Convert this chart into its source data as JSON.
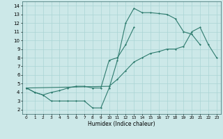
{
  "xlabel": "Humidex (Indice chaleur)",
  "xlim": [
    -0.5,
    23.5
  ],
  "ylim": [
    1.5,
    14.5
  ],
  "xticks": [
    0,
    1,
    2,
    3,
    4,
    5,
    6,
    7,
    8,
    9,
    10,
    11,
    12,
    13,
    14,
    15,
    16,
    17,
    18,
    19,
    20,
    21,
    22,
    23
  ],
  "yticks": [
    2,
    3,
    4,
    5,
    6,
    7,
    8,
    9,
    10,
    11,
    12,
    13,
    14
  ],
  "bg_color": "#cce8e8",
  "line_color": "#2e7b6e",
  "grid_color": "#aad4d4",
  "lines": [
    {
      "x": [
        0,
        1,
        2,
        3,
        4,
        5,
        6,
        7,
        8,
        9,
        10,
        11,
        12,
        13,
        14,
        15,
        16,
        17,
        18,
        19,
        20,
        21
      ],
      "y": [
        4.5,
        4.0,
        3.7,
        3.0,
        3.0,
        3.0,
        3.0,
        3.0,
        2.2,
        2.2,
        4.5,
        7.7,
        12.0,
        13.7,
        13.2,
        13.2,
        13.1,
        13.0,
        12.5,
        11.0,
        10.7,
        9.5
      ]
    },
    {
      "x": [
        0,
        1,
        2,
        3,
        4,
        5,
        6,
        7,
        8,
        9,
        10,
        11,
        12,
        13
      ],
      "y": [
        4.5,
        4.0,
        3.7,
        4.0,
        4.2,
        4.5,
        4.7,
        4.7,
        4.5,
        4.5,
        7.7,
        8.0,
        9.5,
        11.5
      ]
    },
    {
      "x": [
        0,
        10,
        11,
        12,
        13,
        14,
        15,
        16,
        17,
        18,
        19,
        20,
        21,
        22,
        23
      ],
      "y": [
        4.5,
        4.7,
        5.5,
        6.5,
        7.5,
        8.0,
        8.5,
        8.7,
        9.0,
        9.0,
        9.3,
        11.0,
        11.5,
        9.5,
        8.0
      ]
    }
  ]
}
